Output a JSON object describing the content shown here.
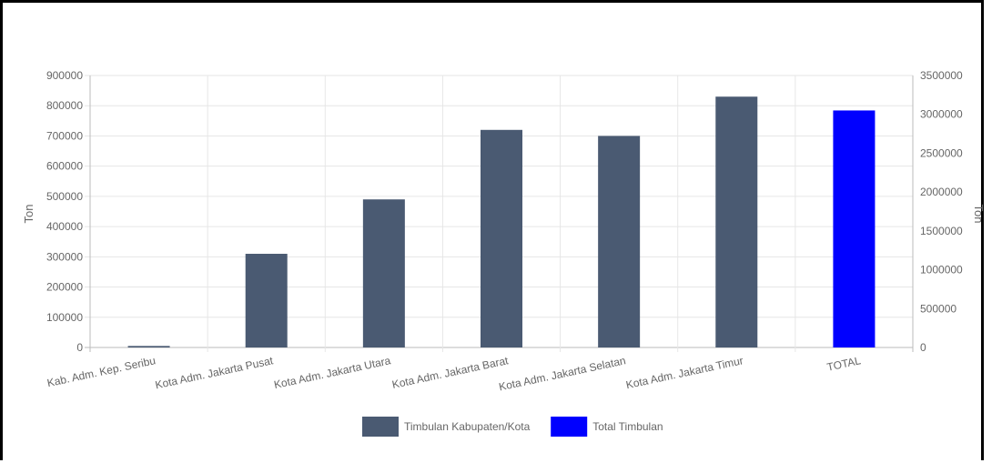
{
  "chart_data": {
    "type": "bar",
    "categories": [
      "Kab. Adm. Kep. Seribu",
      "Kota Adm. Jakarta Pusat",
      "Kota Adm. Jakarta Utara",
      "Kota Adm. Jakarta Barat",
      "Kota Adm. Jakarta Selatan",
      "Kota Adm. Jakarta Timur",
      "TOTAL"
    ],
    "series": [
      {
        "name": "Timbulan Kabupaten/Kota",
        "axis": "left",
        "color": "#4a5a72",
        "values": [
          5000,
          310000,
          490000,
          720000,
          700000,
          830000,
          null
        ]
      },
      {
        "name": "Total Timbulan",
        "axis": "right",
        "color": "#0000ff",
        "values": [
          null,
          null,
          null,
          null,
          null,
          null,
          3050000
        ]
      }
    ],
    "ylabel_left": "Ton",
    "ylabel_right": "Ton",
    "ylim_left": [
      0,
      900000
    ],
    "ylim_right": [
      0,
      3500000
    ],
    "yticks_left": [
      "900000",
      "800000",
      "700000",
      "600000",
      "500000",
      "400000",
      "300000",
      "200000",
      "100000",
      "0"
    ],
    "yticks_right": [
      "3500000",
      "3000000",
      "2500000",
      "2000000",
      "1500000",
      "1000000",
      "500000",
      "0"
    ],
    "grid": true,
    "legend_position": "bottom"
  }
}
